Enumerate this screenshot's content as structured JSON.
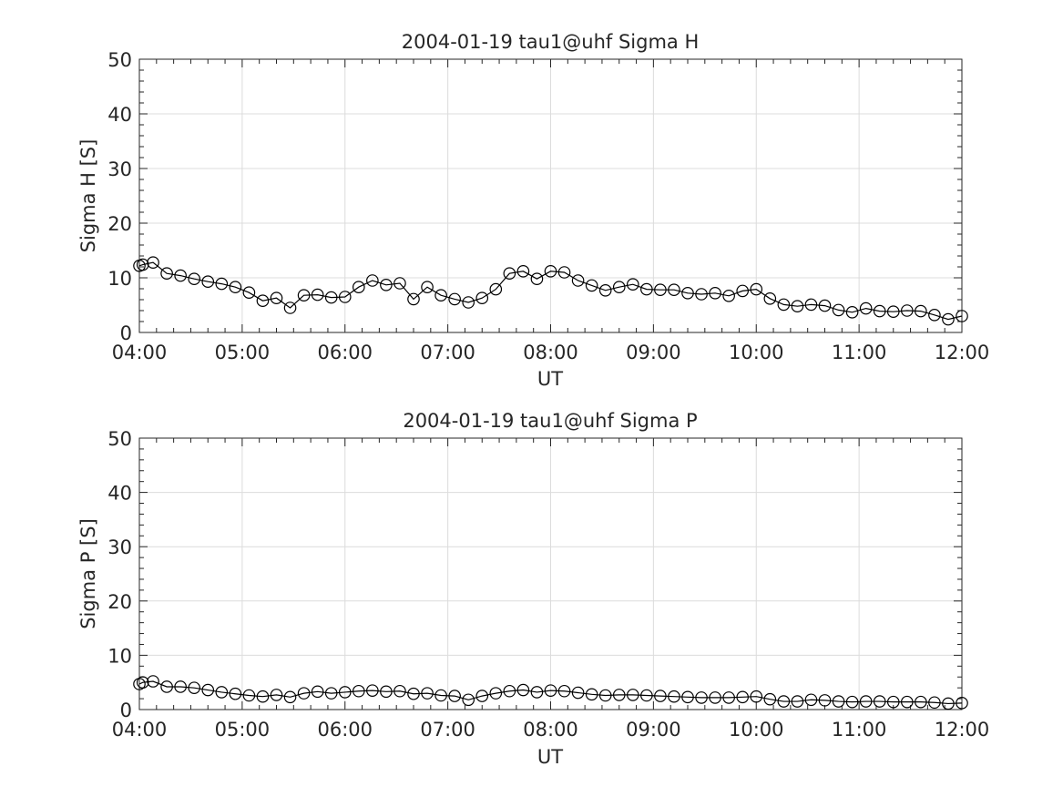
{
  "chart_data": [
    {
      "type": "line",
      "title": "2004-01-19  tau1@uhf Sigma H",
      "xlabel": "UT",
      "ylabel": "Sigma H [S]",
      "xlim": [
        "04:00",
        "12:00"
      ],
      "ylim": [
        0,
        50
      ],
      "xticks": [
        "04:00",
        "05:00",
        "06:00",
        "07:00",
        "08:00",
        "09:00",
        "10:00",
        "11:00",
        "12:00"
      ],
      "yticks": [
        0,
        10,
        20,
        30,
        40,
        50
      ],
      "grid": true,
      "marker": "circle",
      "x": [
        "04:00",
        "04:02",
        "04:08",
        "04:16",
        "04:24",
        "04:32",
        "04:40",
        "04:48",
        "04:56",
        "05:04",
        "05:12",
        "05:20",
        "05:28",
        "05:36",
        "05:44",
        "05:52",
        "06:00",
        "06:08",
        "06:16",
        "06:24",
        "06:32",
        "06:40",
        "06:48",
        "06:56",
        "07:04",
        "07:12",
        "07:20",
        "07:28",
        "07:36",
        "07:44",
        "07:52",
        "08:00",
        "08:08",
        "08:16",
        "08:24",
        "08:32",
        "08:40",
        "08:48",
        "08:56",
        "09:04",
        "09:12",
        "09:20",
        "09:28",
        "09:36",
        "09:44",
        "09:52",
        "10:00",
        "10:08",
        "10:16",
        "10:24",
        "10:32",
        "10:40",
        "10:48",
        "10:56",
        "11:04",
        "11:12",
        "11:20",
        "11:28",
        "11:36",
        "11:44",
        "11:52",
        "12:00"
      ],
      "series": [
        {
          "values": [
            12.2,
            12.4,
            12.8,
            10.8,
            10.4,
            9.8,
            9.3,
            8.9,
            8.3,
            7.3,
            5.8,
            6.3,
            4.5,
            6.8,
            6.9,
            6.4,
            6.5,
            8.3,
            9.5,
            8.7,
            9.0,
            6.1,
            8.3,
            6.8,
            6.1,
            5.5,
            6.3,
            7.9,
            10.8,
            11.2,
            9.8,
            11.2,
            11.0,
            9.5,
            8.6,
            7.7,
            8.3,
            8.8,
            7.9,
            7.8,
            7.8,
            7.2,
            7.0,
            7.2,
            6.7,
            7.6,
            7.9,
            6.2,
            5.1,
            4.8,
            5.1,
            4.9,
            4.1,
            3.7,
            4.4,
            3.9,
            3.8,
            4.0,
            3.9,
            3.2,
            2.4,
            3.0
          ]
        }
      ]
    },
    {
      "type": "line",
      "title": "2004-01-19  tau1@uhf Sigma P",
      "xlabel": "UT",
      "ylabel": "Sigma P [S]",
      "xlim": [
        "04:00",
        "12:00"
      ],
      "ylim": [
        0,
        50
      ],
      "xticks": [
        "04:00",
        "05:00",
        "06:00",
        "07:00",
        "08:00",
        "09:00",
        "10:00",
        "11:00",
        "12:00"
      ],
      "yticks": [
        0,
        10,
        20,
        30,
        40,
        50
      ],
      "grid": true,
      "marker": "circle",
      "x": [
        "04:00",
        "04:02",
        "04:08",
        "04:16",
        "04:24",
        "04:32",
        "04:40",
        "04:48",
        "04:56",
        "05:04",
        "05:12",
        "05:20",
        "05:28",
        "05:36",
        "05:44",
        "05:52",
        "06:00",
        "06:08",
        "06:16",
        "06:24",
        "06:32",
        "06:40",
        "06:48",
        "06:56",
        "07:04",
        "07:12",
        "07:20",
        "07:28",
        "07:36",
        "07:44",
        "07:52",
        "08:00",
        "08:08",
        "08:16",
        "08:24",
        "08:32",
        "08:40",
        "08:48",
        "08:56",
        "09:04",
        "09:12",
        "09:20",
        "09:28",
        "09:36",
        "09:44",
        "09:52",
        "10:00",
        "10:08",
        "10:16",
        "10:24",
        "10:32",
        "10:40",
        "10:48",
        "10:56",
        "11:04",
        "11:12",
        "11:20",
        "11:28",
        "11:36",
        "11:44",
        "11:52",
        "12:00"
      ],
      "series": [
        {
          "values": [
            4.7,
            5.0,
            5.2,
            4.2,
            4.2,
            4.0,
            3.6,
            3.2,
            2.9,
            2.6,
            2.4,
            2.7,
            2.3,
            3.0,
            3.3,
            3.0,
            3.2,
            3.4,
            3.5,
            3.3,
            3.4,
            2.9,
            3.0,
            2.6,
            2.5,
            1.8,
            2.5,
            3.0,
            3.4,
            3.6,
            3.2,
            3.5,
            3.4,
            3.1,
            2.8,
            2.6,
            2.7,
            2.7,
            2.6,
            2.5,
            2.4,
            2.3,
            2.2,
            2.2,
            2.2,
            2.3,
            2.4,
            1.9,
            1.5,
            1.5,
            1.8,
            1.7,
            1.5,
            1.4,
            1.5,
            1.5,
            1.4,
            1.4,
            1.4,
            1.3,
            1.1,
            1.2
          ]
        }
      ]
    }
  ]
}
